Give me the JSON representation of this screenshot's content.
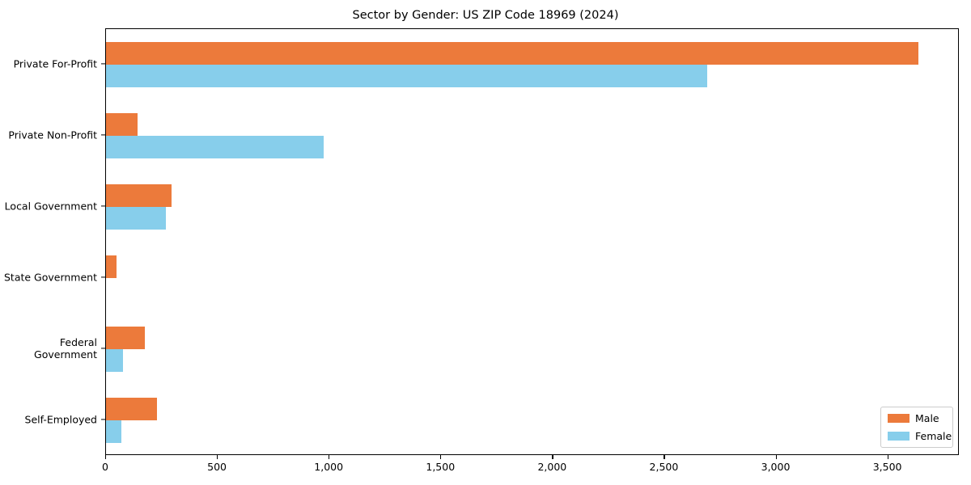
{
  "chart_data": {
    "type": "bar",
    "orientation": "horizontal",
    "title": "Sector by Gender: US ZIP Code 18969 (2024)",
    "categories": [
      "Private For-Profit",
      "Private Non-Profit",
      "Local Government",
      "State Government",
      "Federal Government",
      "Self-Employed"
    ],
    "series": [
      {
        "name": "Male",
        "color": "#EC7A3B",
        "values": [
          3635,
          140,
          295,
          47,
          174,
          228
        ]
      },
      {
        "name": "Female",
        "color": "#87CEEB",
        "values": [
          2690,
          975,
          268,
          0,
          76,
          69
        ]
      }
    ],
    "xlabel": "",
    "ylabel": "",
    "xlim": [
      0,
      3820
    ],
    "x_ticks": [
      {
        "value": 0,
        "label": "0"
      },
      {
        "value": 500,
        "label": "500"
      },
      {
        "value": 1000,
        "label": "1,000"
      },
      {
        "value": 1500,
        "label": "1,500"
      },
      {
        "value": 2000,
        "label": "2,000"
      },
      {
        "value": 2500,
        "label": "2,500"
      },
      {
        "value": 3000,
        "label": "3,000"
      },
      {
        "value": 3500,
        "label": "3,500"
      }
    ],
    "grid": false,
    "legend": {
      "position": "lower right",
      "entries": [
        "Male",
        "Female"
      ]
    }
  }
}
